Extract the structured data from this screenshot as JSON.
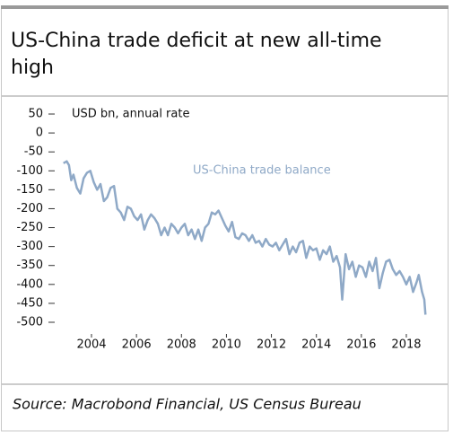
{
  "chart_data": {
    "type": "line",
    "title": [
      "US-China trade deficit at new all-time",
      "high"
    ],
    "y_label": "USD bn, annual rate",
    "source": "Source: Macrobond Financial, US Census Bureau",
    "x": [
      2002.75,
      2002.9,
      2003.0,
      2003.1,
      2003.2,
      2003.35,
      2003.5,
      2003.65,
      2003.8,
      2003.95,
      2004.1,
      2004.25,
      2004.4,
      2004.55,
      2004.7,
      2004.85,
      2005.0,
      2005.15,
      2005.3,
      2005.45,
      2005.6,
      2005.75,
      2005.9,
      2006.05,
      2006.2,
      2006.35,
      2006.5,
      2006.65,
      2006.8,
      2006.95,
      2007.1,
      2007.25,
      2007.4,
      2007.55,
      2007.7,
      2007.85,
      2008.0,
      2008.15,
      2008.3,
      2008.45,
      2008.6,
      2008.75,
      2008.9,
      2009.05,
      2009.2,
      2009.35,
      2009.5,
      2009.65,
      2009.8,
      2009.95,
      2010.1,
      2010.25,
      2010.4,
      2010.55,
      2010.7,
      2010.85,
      2011.0,
      2011.15,
      2011.3,
      2011.45,
      2011.6,
      2011.75,
      2011.9,
      2012.05,
      2012.2,
      2012.35,
      2012.5,
      2012.65,
      2012.8,
      2012.95,
      2013.1,
      2013.25,
      2013.4,
      2013.55,
      2013.7,
      2013.85,
      2014.0,
      2014.15,
      2014.3,
      2014.45,
      2014.6,
      2014.75,
      2014.9,
      2015.05,
      2015.15,
      2015.3,
      2015.45,
      2015.6,
      2015.75,
      2015.9,
      2016.05,
      2016.2,
      2016.35,
      2016.5,
      2016.65,
      2016.8,
      2016.95,
      2017.1,
      2017.25,
      2017.4,
      2017.55,
      2017.7,
      2017.85,
      2018.0,
      2018.15,
      2018.3,
      2018.45,
      2018.55,
      2018.7,
      2018.8,
      2018.85
    ],
    "series": [
      {
        "name": "US-China trade balance",
        "color": "#8fa9c7",
        "values": [
          -80,
          -75,
          -85,
          -125,
          -110,
          -145,
          -160,
          -120,
          -105,
          -100,
          -130,
          -150,
          -135,
          -180,
          -170,
          -145,
          -140,
          -200,
          -210,
          -230,
          -195,
          -200,
          -220,
          -230,
          -215,
          -255,
          -230,
          -215,
          -225,
          -240,
          -270,
          -250,
          -270,
          -240,
          -250,
          -265,
          -250,
          -240,
          -270,
          -255,
          -280,
          -255,
          -285,
          -250,
          -240,
          -210,
          -215,
          -205,
          -225,
          -245,
          -260,
          -235,
          -275,
          -280,
          -265,
          -270,
          -285,
          -270,
          -290,
          -285,
          -300,
          -280,
          -295,
          -300,
          -290,
          -310,
          -295,
          -280,
          -320,
          -300,
          -315,
          -290,
          -285,
          -330,
          -300,
          -310,
          -305,
          -335,
          -310,
          -320,
          -300,
          -340,
          -325,
          -355,
          -440,
          -320,
          -360,
          -340,
          -380,
          -350,
          -355,
          -380,
          -340,
          -365,
          -330,
          -410,
          -370,
          -340,
          -335,
          -360,
          -375,
          -365,
          -380,
          -400,
          -380,
          -420,
          -395,
          -375,
          -420,
          -440,
          -480
        ]
      }
    ],
    "xlim": [
      2002.6,
      2019.0
    ],
    "xticks": [
      2004,
      2006,
      2008,
      2010,
      2012,
      2014,
      2016,
      2018
    ],
    "ylim": [
      -510,
      60
    ],
    "yticks": [
      50,
      0,
      -50,
      -100,
      -150,
      -200,
      -250,
      -300,
      -350,
      -400,
      -450,
      -500
    ]
  }
}
